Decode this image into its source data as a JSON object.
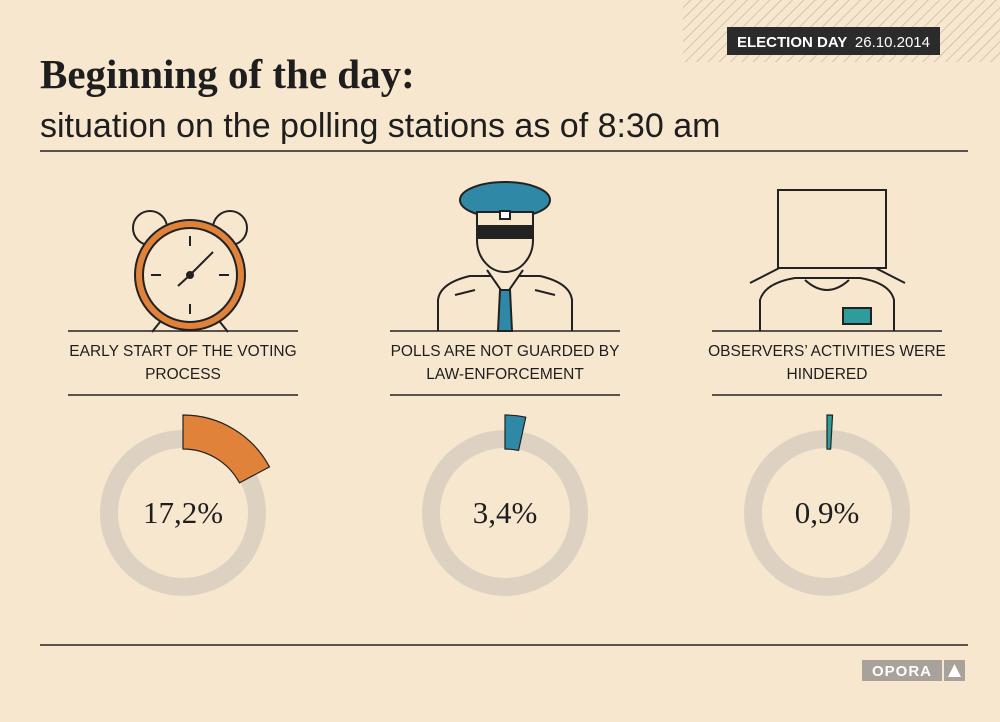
{
  "header": {
    "badge_label": "ELECTION DAY",
    "badge_date": "26.10.2014",
    "title": "Beginning of the day:",
    "subtitle": "situation on the polling stations as of 8:30 am"
  },
  "footer": {
    "logo": "OPORA"
  },
  "chart_data": [
    {
      "type": "donut",
      "title": "EARLY START OF THE VOTING PROCESS",
      "values": [
        17.2
      ],
      "value_labels": [
        "17,2%"
      ],
      "color": "#e0823a"
    },
    {
      "type": "donut",
      "title": "POLLS ARE NOT GUARDED BY LAW-ENFORCEMENT",
      "values": [
        3.4
      ],
      "value_labels": [
        "3,4%"
      ],
      "color": "#2f88a6"
    },
    {
      "type": "donut",
      "title": "OBSERVERS’ ACTIVITIES WERE HINDERED",
      "values": [
        0.9
      ],
      "value_labels": [
        "0,9%"
      ],
      "color": "#2e9c9a"
    }
  ]
}
